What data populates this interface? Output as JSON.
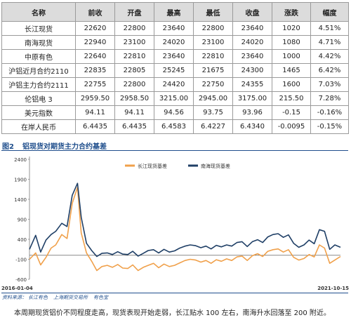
{
  "table": {
    "headers": [
      "名称",
      "前收",
      "开盘",
      "最高",
      "最低",
      "收盘",
      "涨跌",
      "幅度"
    ],
    "rows": [
      [
        "长江现货",
        "22620",
        "22800",
        "23640",
        "22800",
        "23640",
        "1020",
        "4.51%"
      ],
      [
        "南海现货",
        "22940",
        "23100",
        "24020",
        "23100",
        "24020",
        "1080",
        "4.71%"
      ],
      [
        "中原有色",
        "22640",
        "22810",
        "23640",
        "22810",
        "23640",
        "1000",
        "4.42%"
      ],
      [
        "沪铝近月合约2110",
        "22835",
        "22805",
        "25245",
        "21675",
        "24300",
        "1465",
        "6.42%"
      ],
      [
        "沪铝主力合约2111",
        "22755",
        "22800",
        "24420",
        "22750",
        "24355",
        "1600",
        "7.03%"
      ],
      [
        "伦铝电 3",
        "2959.50",
        "2958.50",
        "3215.00",
        "2945.00",
        "3175.00",
        "215.50",
        "7.28%"
      ],
      [
        "美元指数",
        "94.11",
        "94.11",
        "94.56",
        "93.75",
        "93.96",
        "-0.15",
        "-0.16%"
      ],
      [
        "在岸人民币",
        "6.4435",
        "6.4435",
        "6.4583",
        "6.4227",
        "6.4340",
        "-0.0095",
        "-0.15%"
      ]
    ]
  },
  "figure": {
    "number": "图2",
    "title": "铝现货对期货主力合约基差"
  },
  "chart_data": {
    "type": "line",
    "x_start": "2016-01-04",
    "x_end": "2021-10-15",
    "x_tick_labels": [
      "2016-01-04",
      "2021-10-15"
    ],
    "y_ticks": [
      2400,
      1900,
      1400,
      900,
      400,
      -100,
      -600
    ],
    "ylim": [
      -600,
      2400
    ],
    "legend_position": "top",
    "colors": {
      "changjiang": "#f0a04a",
      "nanhai": "#1f3f66"
    },
    "series": [
      {
        "name": "长江现货基差",
        "color": "#f0a04a",
        "x": [
          "2016-01-04",
          "2016-02-15",
          "2016-03-20",
          "2016-04-25",
          "2016-05-30",
          "2016-06-30",
          "2016-08-10",
          "2016-09-15",
          "2016-10-20",
          "2016-11-25",
          "2016-12-20",
          "2017-01-25",
          "2017-03-01",
          "2017-04-05",
          "2017-05-10",
          "2017-06-15",
          "2017-07-20",
          "2017-08-25",
          "2017-09-28",
          "2017-11-01",
          "2017-12-05",
          "2018-01-10",
          "2018-02-15",
          "2018-03-20",
          "2018-04-25",
          "2018-05-30",
          "2018-07-05",
          "2018-08-10",
          "2018-09-15",
          "2018-10-20",
          "2018-11-25",
          "2018-12-30",
          "2019-02-05",
          "2019-03-12",
          "2019-04-16",
          "2019-05-21",
          "2019-06-25",
          "2019-07-30",
          "2019-09-03",
          "2019-10-08",
          "2019-11-12",
          "2019-12-17",
          "2020-01-21",
          "2020-02-25",
          "2020-03-31",
          "2020-05-05",
          "2020-06-09",
          "2020-07-14",
          "2020-08-18",
          "2020-09-22",
          "2020-10-27",
          "2020-12-01",
          "2021-01-05",
          "2021-02-09",
          "2021-03-16",
          "2021-04-20",
          "2021-05-25",
          "2021-06-29",
          "2021-08-03",
          "2021-09-07",
          "2021-10-15"
        ],
        "y": [
          -100,
          60,
          -240,
          -50,
          180,
          260,
          520,
          420,
          1300,
          1700,
          560,
          60,
          -150,
          -380,
          -280,
          -250,
          -300,
          -230,
          -320,
          -330,
          -240,
          -380,
          -300,
          -250,
          -200,
          -310,
          -220,
          -280,
          -250,
          -190,
          -130,
          -100,
          -120,
          -170,
          -130,
          -200,
          -110,
          -150,
          -90,
          -130,
          -40,
          -20,
          -130,
          -10,
          40,
          -30,
          100,
          140,
          160,
          80,
          140,
          -50,
          -120,
          -80,
          20,
          -40,
          260,
          180,
          -200,
          -120,
          -30
        ]
      },
      {
        "name": "南海现货基差",
        "color": "#1f3f66",
        "x": [
          "2016-01-04",
          "2016-02-15",
          "2016-03-20",
          "2016-04-25",
          "2016-05-30",
          "2016-06-30",
          "2016-08-10",
          "2016-09-15",
          "2016-10-20",
          "2016-11-25",
          "2016-12-20",
          "2017-01-25",
          "2017-03-01",
          "2017-04-05",
          "2017-05-10",
          "2017-06-15",
          "2017-07-20",
          "2017-08-25",
          "2017-09-28",
          "2017-11-01",
          "2017-12-05",
          "2018-01-10",
          "2018-02-15",
          "2018-03-20",
          "2018-04-25",
          "2018-05-30",
          "2018-07-05",
          "2018-08-10",
          "2018-09-15",
          "2018-10-20",
          "2018-11-25",
          "2018-12-30",
          "2019-02-05",
          "2019-03-12",
          "2019-04-16",
          "2019-05-21",
          "2019-06-25",
          "2019-07-30",
          "2019-09-03",
          "2019-10-08",
          "2019-11-12",
          "2019-12-17",
          "2020-01-21",
          "2020-02-25",
          "2020-03-31",
          "2020-05-05",
          "2020-06-09",
          "2020-07-14",
          "2020-08-18",
          "2020-09-22",
          "2020-10-27",
          "2020-12-01",
          "2021-01-05",
          "2021-02-09",
          "2021-03-16",
          "2021-04-20",
          "2021-05-25",
          "2021-06-29",
          "2021-08-03",
          "2021-09-07",
          "2021-10-15"
        ],
        "y": [
          150,
          500,
          80,
          380,
          520,
          600,
          800,
          720,
          1500,
          1800,
          950,
          300,
          120,
          -30,
          50,
          60,
          20,
          90,
          30,
          20,
          100,
          -20,
          50,
          120,
          140,
          60,
          150,
          80,
          110,
          180,
          230,
          260,
          240,
          190,
          230,
          160,
          250,
          210,
          260,
          230,
          320,
          340,
          220,
          340,
          390,
          320,
          460,
          520,
          540,
          450,
          510,
          300,
          200,
          260,
          380,
          290,
          640,
          600,
          150,
          260,
          200
        ]
      }
    ]
  },
  "source": {
    "label": "资料来源：",
    "items": [
      "长江有色",
      "上海期货交易所",
      "有色宝"
    ]
  },
  "comment": "本周期现货铝价不同程度走高，现货表现开始走弱，长江贴水 100 左右，南海升水回落至 200 附近。"
}
